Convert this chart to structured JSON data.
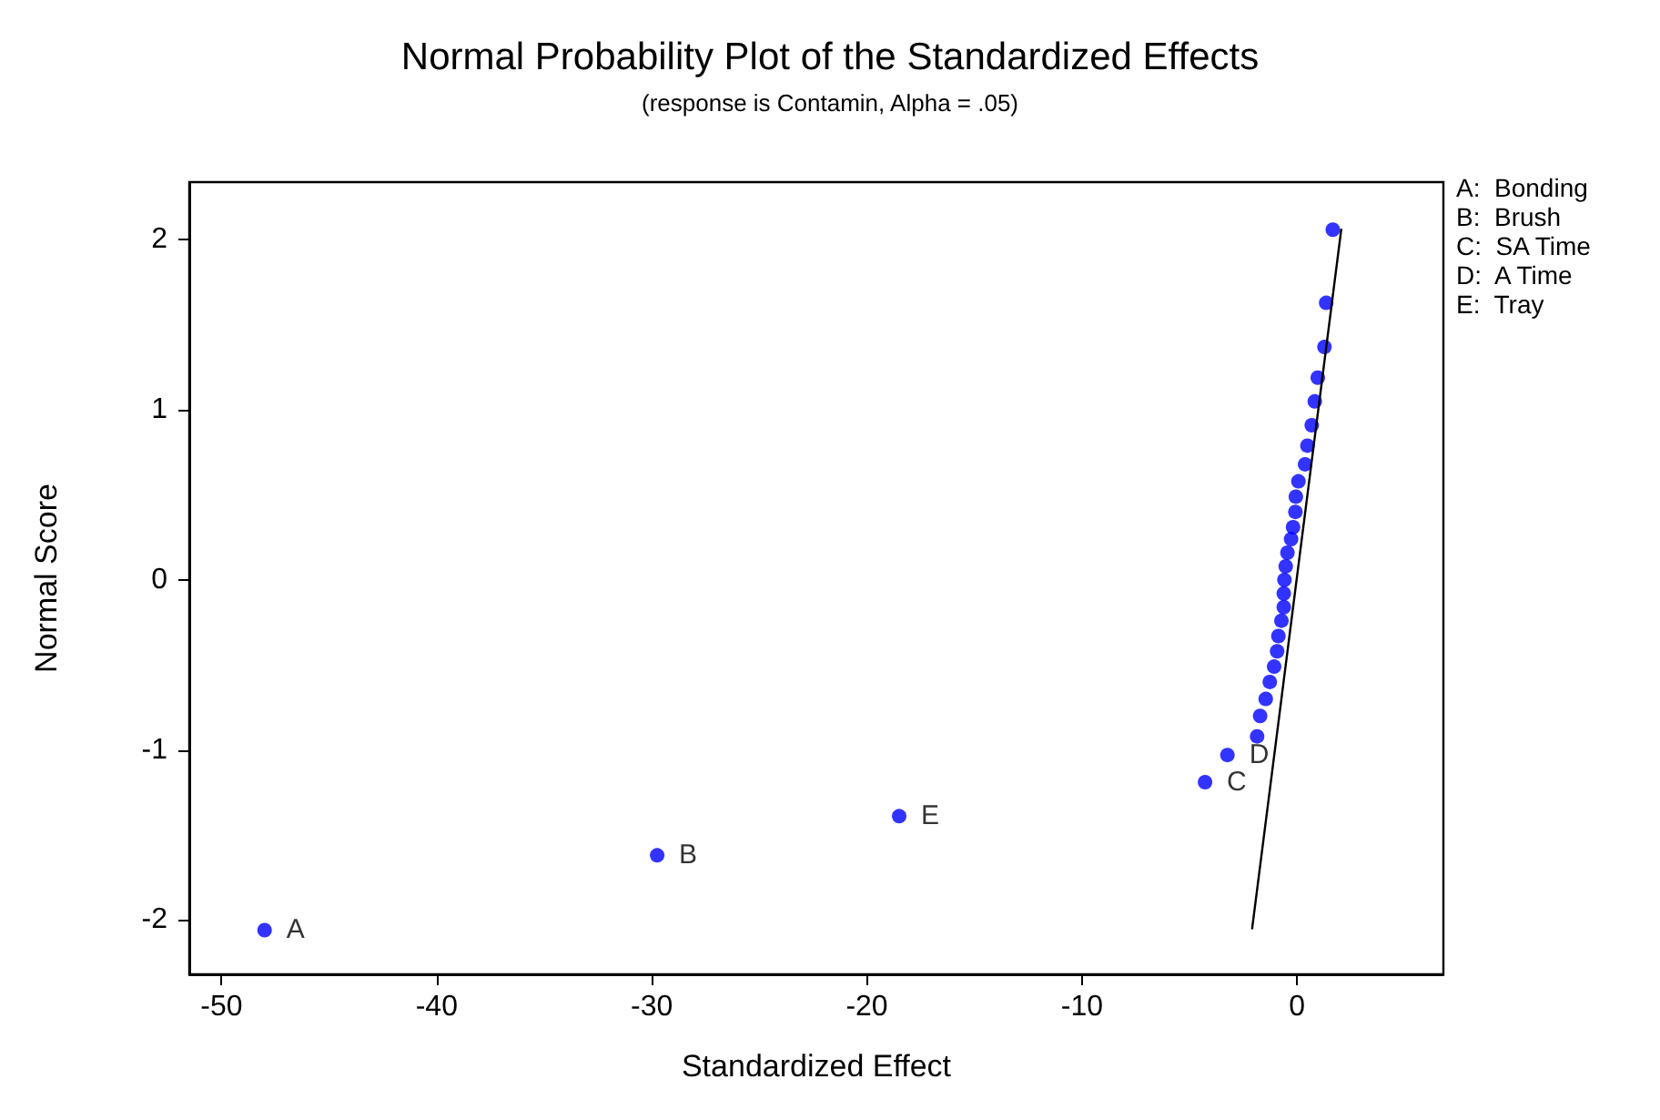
{
  "chart_data": {
    "type": "scatter",
    "title": "Normal Probability Plot of the Standardized Effects",
    "subtitle": "(response is Contamin, Alpha = .05)",
    "xlabel": "Standardized Effect",
    "ylabel": "Normal Score",
    "xlim": [
      -51.5,
      6.8
    ],
    "xticks": [
      -50,
      -40,
      -30,
      -20,
      -10,
      0
    ],
    "ylim": [
      -2.32,
      2.34
    ],
    "yticks": [
      -2,
      -1,
      0,
      1,
      2
    ],
    "grid": false,
    "annotations": [
      "A:  Bonding",
      "B:  Brush",
      "C:  SA Time",
      "D:  A Time",
      "E:  Tray"
    ],
    "series": [
      {
        "type": "scatter",
        "color": "#0000ff",
        "marker": "circle",
        "x": [
          -48.0,
          -29.75,
          -18.5,
          -4.28,
          -3.24,
          -1.86,
          -1.72,
          -1.46,
          -1.27,
          -1.07,
          -0.93,
          -0.87,
          -0.73,
          -0.62,
          -0.62,
          -0.59,
          -0.53,
          -0.45,
          -0.28,
          -0.19,
          -0.08,
          -0.06,
          0.06,
          0.37,
          0.48,
          0.68,
          0.82,
          0.96,
          1.27,
          1.35,
          1.66
        ],
        "values": [
          -2.06,
          -1.62,
          -1.39,
          -1.19,
          -1.03,
          -0.92,
          -0.8,
          -0.7,
          -0.6,
          -0.51,
          -0.42,
          -0.33,
          -0.24,
          -0.16,
          -0.08,
          0.0,
          0.08,
          0.16,
          0.24,
          0.31,
          0.4,
          0.49,
          0.58,
          0.68,
          0.79,
          0.91,
          1.05,
          1.19,
          1.37,
          1.63,
          2.06
        ],
        "value_labels": [
          "A",
          "B",
          "E",
          "C",
          "D",
          null,
          null,
          null,
          null,
          null,
          null,
          null,
          null,
          null,
          null,
          null,
          null,
          null,
          null,
          null,
          null,
          null,
          null,
          null,
          null,
          null,
          null,
          null,
          null,
          null,
          null
        ]
      },
      {
        "type": "line",
        "color": "#000000",
        "marker": "none",
        "line_style": "solid",
        "x": [
          -2.09,
          2.05
        ],
        "values": [
          -2.05,
          2.06
        ]
      }
    ]
  }
}
